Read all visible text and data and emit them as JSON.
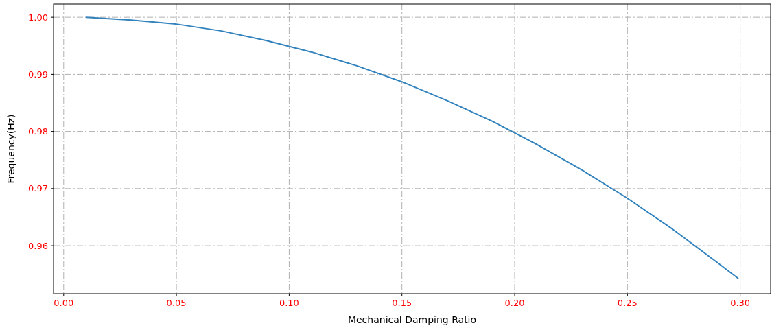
{
  "chart_data": {
    "type": "line",
    "xlabel": "Mechanical Damping Ratio",
    "ylabel": "Frequency(Hz)",
    "x": [
      0.01,
      0.03,
      0.05,
      0.07,
      0.09,
      0.11,
      0.13,
      0.15,
      0.17,
      0.19,
      0.21,
      0.23,
      0.25,
      0.27,
      0.29,
      0.299
    ],
    "series": [
      {
        "color": "#3182bd",
        "values": [
          1.0,
          0.9995,
          0.9988,
          0.9976,
          0.9959,
          0.9939,
          0.9915,
          0.9887,
          0.9854,
          0.9818,
          0.9777,
          0.9732,
          0.9683,
          0.9629,
          0.957,
          0.9543
        ]
      }
    ],
    "xlim": [
      -0.0045,
      0.3135
    ],
    "ylim": [
      0.9516,
      1.0023
    ],
    "xticks": [
      {
        "value": 0,
        "label": "0.00"
      },
      {
        "value": 0.05,
        "label": "0.05"
      },
      {
        "value": 0.1,
        "label": "0.10"
      },
      {
        "value": 0.15,
        "label": "0.15"
      },
      {
        "value": 0.2,
        "label": "0.20"
      },
      {
        "value": 0.25,
        "label": "0.25"
      },
      {
        "value": 0.3,
        "label": "0.30"
      }
    ],
    "yticks": [
      {
        "value": 0.96,
        "label": "0.96"
      },
      {
        "value": 0.97,
        "label": "0.97"
      },
      {
        "value": 0.98,
        "label": "0.98"
      },
      {
        "value": 0.99,
        "label": "0.99"
      },
      {
        "value": 1.0,
        "label": "1.00"
      }
    ],
    "grid": true,
    "marker": "none",
    "line_style": "solid"
  }
}
